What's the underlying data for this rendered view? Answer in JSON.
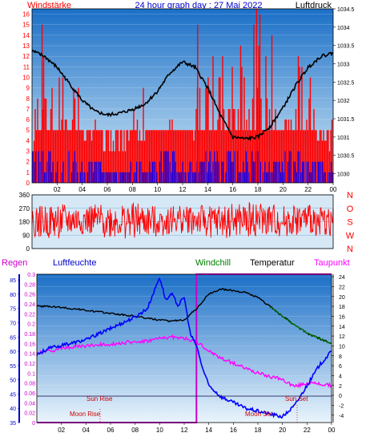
{
  "chart_data": [
    {
      "type": "line",
      "title": "24 hour graph day : 27 Mai 2022",
      "left_axis_label": "Windstärke",
      "right_axis_label": "Luftdruck",
      "y_left": {
        "min": 0,
        "max": 16.5,
        "ticks": [
          0,
          1,
          2,
          3,
          4,
          5,
          6,
          7,
          8,
          9,
          10,
          11,
          12,
          13,
          14,
          15,
          16
        ]
      },
      "y_right": {
        "min": 1029.75,
        "max": 1034.5,
        "ticks": [
          "1030",
          "1030.5",
          "1031",
          "1031.5",
          "1032",
          "1032.5",
          "1033",
          "1033.5",
          "1034",
          "1034.5"
        ]
      },
      "x_ticks": [
        "02",
        "04",
        "06",
        "08",
        "10",
        "12",
        "14",
        "16",
        "18",
        "20",
        "22",
        "00"
      ],
      "series": [
        {
          "color": "#000000",
          "axis": "right",
          "x": [
            0,
            1,
            2,
            3,
            4,
            5,
            6,
            7,
            8,
            9,
            10,
            11,
            12,
            13,
            14,
            15,
            16,
            17,
            18,
            19,
            20,
            21,
            22,
            23,
            24
          ],
          "values": [
            1033.35,
            1033.2,
            1032.9,
            1032.45,
            1032.0,
            1031.7,
            1031.6,
            1031.65,
            1031.75,
            1031.9,
            1032.25,
            1032.75,
            1033.05,
            1032.9,
            1032.35,
            1031.6,
            1031.0,
            1030.95,
            1031.0,
            1031.3,
            1031.8,
            1032.4,
            1032.9,
            1033.2,
            1033.3
          ]
        },
        {
          "color": "#ff0000",
          "axis": "left",
          "style": "gust-bars",
          "x": [
            0,
            1,
            2,
            3,
            4,
            5,
            6,
            7,
            8,
            9,
            10,
            11,
            12,
            13,
            14,
            15,
            16,
            17,
            18,
            19,
            20,
            21,
            22,
            23,
            24
          ],
          "values": [
            5,
            15,
            9,
            12,
            8,
            6,
            5,
            5,
            7,
            8,
            9,
            11,
            9,
            8,
            10,
            12,
            13,
            11,
            16,
            13,
            11,
            12,
            10,
            7,
            6
          ]
        },
        {
          "color": "#0000ff",
          "axis": "left",
          "style": "mean-bars",
          "x": [
            0,
            1,
            2,
            3,
            4,
            5,
            6,
            7,
            8,
            9,
            10,
            11,
            12,
            13,
            14,
            15,
            16,
            17,
            18,
            19,
            20,
            21,
            22,
            23,
            24
          ],
          "values": [
            3,
            3,
            2,
            3,
            2,
            2,
            1,
            1,
            2,
            2,
            3,
            3,
            2,
            2,
            3,
            3,
            3,
            3,
            3,
            2,
            3,
            3,
            2,
            2,
            2
          ]
        }
      ]
    },
    {
      "type": "line",
      "title": "",
      "y": {
        "min": 0,
        "max": 360,
        "ticks": [
          "0",
          "90",
          "180",
          "270",
          "360"
        ]
      },
      "right_labels": [
        "N",
        "W",
        "S",
        "O",
        "N"
      ],
      "series": [
        {
          "color": "#ff0000",
          "x": [
            0,
            2,
            4,
            6,
            8,
            10,
            12,
            14,
            16,
            18,
            20,
            22,
            24
          ],
          "values_min": [
            80,
            60,
            90,
            70,
            60,
            80,
            100,
            70,
            60,
            80,
            70,
            90,
            80
          ],
          "values_max": [
            280,
            300,
            290,
            300,
            310,
            280,
            300,
            290,
            300,
            310,
            290,
            300,
            280
          ]
        }
      ]
    },
    {
      "type": "line",
      "title": "",
      "header_labels": [
        {
          "text": "Regen",
          "color": "#cc00cc"
        },
        {
          "text": "Luftfeuchte",
          "color": "#0000cc"
        },
        {
          "text": "Windchill",
          "color": "#008000"
        },
        {
          "text": "Temperatur",
          "color": "#000000"
        },
        {
          "text": "Taupunkt",
          "color": "#ff00ff"
        }
      ],
      "y_humidity": {
        "min": 35,
        "max": 87,
        "ticks": [
          "35",
          "40",
          "45",
          "50",
          "55",
          "60",
          "65",
          "70",
          "75",
          "80",
          "85"
        ]
      },
      "y_rain": {
        "min": 0,
        "max": 0.3,
        "ticks": [
          "0",
          "0.02",
          "0.04",
          "0.06",
          "0.08",
          "0.1",
          "0.12",
          "0.14",
          "0.16",
          "0.18",
          "0.2",
          "0.22",
          "0.24",
          "0.26",
          "0.28",
          "0.3"
        ]
      },
      "y_temp": {
        "min": -5.5,
        "max": 24.5,
        "ticks": [
          "-4",
          "-2",
          "0",
          "2",
          "4",
          "6",
          "8",
          "10",
          "12",
          "14",
          "16",
          "18",
          "20",
          "22",
          "24"
        ]
      },
      "x_ticks": [
        "02",
        "04",
        "06",
        "08",
        "10",
        "12",
        "14",
        "16",
        "18",
        "20",
        "22",
        "00"
      ],
      "annotations": [
        "Sun Rise",
        "Moon Rise",
        "Moon Set",
        "Sun Set"
      ],
      "series": [
        {
          "color": "#0000ff",
          "axis": "humidity",
          "x": [
            0,
            1,
            2,
            3,
            4,
            5,
            6,
            7,
            8,
            9,
            10,
            10.5,
            11,
            11.5,
            12,
            12.5,
            13,
            13.5,
            14,
            15,
            16,
            17,
            18,
            19,
            20,
            21,
            22,
            23,
            24
          ],
          "values": [
            59,
            61,
            62,
            63,
            64,
            66,
            68,
            70,
            72,
            75,
            86,
            78,
            80,
            76,
            79,
            66,
            62,
            54,
            48,
            44,
            42,
            40,
            39,
            38,
            37,
            41,
            48,
            55,
            60
          ]
        },
        {
          "color": "#000000",
          "axis": "temp",
          "x": [
            0,
            1,
            2,
            3,
            4,
            5,
            6,
            7,
            8,
            9,
            10,
            11,
            12,
            13,
            14,
            15,
            16,
            17,
            18,
            19,
            20,
            21,
            22,
            23,
            24
          ],
          "values": [
            18.0,
            18.0,
            17.8,
            17.5,
            17.2,
            16.9,
            16.6,
            16.3,
            16.0,
            15.6,
            15.2,
            15.0,
            15.3,
            17.5,
            20.5,
            21.5,
            21.2,
            20.8,
            19.8,
            18.0,
            16.0,
            14.2,
            12.6,
            11.5,
            10.5
          ]
        },
        {
          "color": "#008000",
          "axis": "temp",
          "x": [
            19,
            20,
            21,
            22,
            23,
            24
          ],
          "values": [
            18.0,
            16.0,
            14.2,
            12.6,
            11.5,
            10.5
          ]
        },
        {
          "color": "#ff00ff",
          "axis": "temp",
          "x": [
            0,
            1,
            2,
            3,
            4,
            5,
            6,
            7,
            8,
            9,
            10,
            11,
            12,
            13,
            14,
            15,
            16,
            17,
            18,
            19,
            20,
            21,
            22,
            23,
            24
          ],
          "values": [
            8.5,
            9.0,
            9.5,
            9.8,
            10.0,
            10.2,
            10.4,
            10.6,
            10.8,
            11.0,
            11.5,
            11.8,
            11.5,
            10.8,
            9.0,
            7.5,
            6.5,
            5.5,
            4.5,
            3.8,
            3.2,
            1.8,
            2.5,
            2.3,
            2.0
          ]
        },
        {
          "color": "#cc00cc",
          "axis": "rain",
          "x": [
            0,
            13,
            13,
            24
          ],
          "values": [
            0,
            0,
            0.3,
            0.3
          ]
        }
      ]
    }
  ]
}
